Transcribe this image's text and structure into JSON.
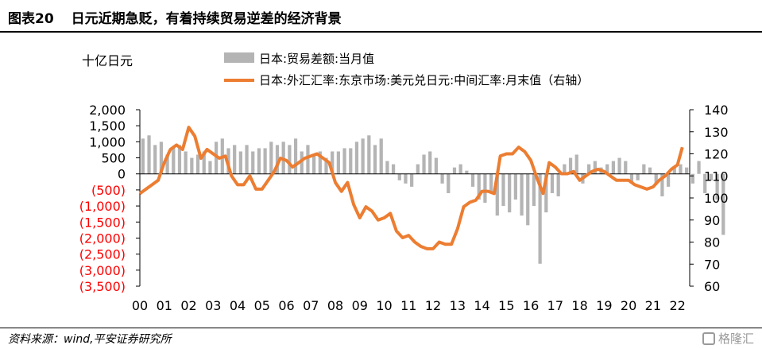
{
  "header": {
    "label": "图表20",
    "title": "日元近期急贬，有着持续贸易逆差的经济背景"
  },
  "footer": {
    "source": "资料来源：wind,平安证券研究所",
    "watermark": "格隆汇"
  },
  "colors": {
    "bars": "#b4b4b4",
    "line": "#ec7d31",
    "negative_tick": "#ff0000"
  },
  "chart_data": {
    "type": "bar+line",
    "y_left_unit": "十亿日元",
    "y_left_range": [
      -3500,
      2000
    ],
    "y_left_ticks": [
      "2,000",
      "1,500",
      "1,000",
      "500",
      "0",
      "(500)",
      "(1,000)",
      "(1,500)",
      "(2,000)",
      "(2,500)",
      "(3,000)",
      "(3,500)"
    ],
    "y_right_range": [
      60,
      140
    ],
    "y_right_ticks": [
      "140",
      "130",
      "120",
      "110",
      "100",
      "90",
      "80",
      "70",
      "60"
    ],
    "x_range": [
      2000,
      2022.5
    ],
    "x_ticks": [
      "00",
      "01",
      "02",
      "03",
      "04",
      "05",
      "06",
      "07",
      "08",
      "09",
      "10",
      "11",
      "12",
      "13",
      "14",
      "15",
      "16",
      "17",
      "18",
      "19",
      "20",
      "21",
      "22"
    ],
    "legend": {
      "position": "top",
      "entries": [
        "日本:贸易差额:当月值",
        "日本:外汇汇率:东京市场:美元兑日元:中间汇率:月末值（右轴）"
      ]
    },
    "series": [
      {
        "name": "日本:贸易差额:当月值",
        "type": "bar",
        "axis": "left",
        "step_years": 0.25,
        "x_start": 2000,
        "values": [
          1100,
          1200,
          900,
          1000,
          600,
          800,
          900,
          700,
          500,
          600,
          700,
          400,
          1000,
          1100,
          800,
          900,
          700,
          900,
          700,
          800,
          800,
          1000,
          900,
          1000,
          900,
          1100,
          700,
          900,
          600,
          700,
          500,
          700,
          700,
          800,
          800,
          1000,
          1100,
          1200,
          900,
          1100,
          400,
          300,
          -200,
          -300,
          -400,
          300,
          600,
          700,
          500,
          -300,
          -600,
          200,
          300,
          100,
          -400,
          -800,
          -900,
          -600,
          -1300,
          -1000,
          -1200,
          -800,
          -1300,
          -1600,
          -1000,
          -2800,
          -1200,
          -600,
          -700,
          300,
          500,
          600,
          -300,
          300,
          400,
          200,
          300,
          400,
          500,
          400,
          -300,
          -200,
          300,
          200,
          -300,
          -700,
          -400,
          200,
          300,
          200,
          -300,
          400,
          -600,
          -200,
          -800,
          -1900
        ]
      },
      {
        "name": "日本:外汇汇率:东京市场:美元兑日元:中间汇率:月末值（右轴）",
        "type": "line",
        "axis": "right",
        "x": [
          2000.0,
          2000.25,
          2000.5,
          2000.75,
          2001.0,
          2001.25,
          2001.5,
          2001.75,
          2002.0,
          2002.25,
          2002.5,
          2002.75,
          2003.0,
          2003.25,
          2003.5,
          2003.75,
          2004.0,
          2004.25,
          2004.5,
          2004.75,
          2005.0,
          2005.25,
          2005.5,
          2005.75,
          2006.0,
          2006.25,
          2006.5,
          2006.75,
          2007.0,
          2007.25,
          2007.5,
          2007.75,
          2008.0,
          2008.25,
          2008.5,
          2008.75,
          2009.0,
          2009.25,
          2009.5,
          2009.75,
          2010.0,
          2010.25,
          2010.5,
          2010.75,
          2011.0,
          2011.25,
          2011.5,
          2011.75,
          2012.0,
          2012.25,
          2012.5,
          2012.75,
          2013.0,
          2013.25,
          2013.5,
          2013.75,
          2014.0,
          2014.25,
          2014.5,
          2014.75,
          2015.0,
          2015.25,
          2015.5,
          2015.75,
          2016.0,
          2016.25,
          2016.5,
          2016.75,
          2017.0,
          2017.25,
          2017.5,
          2017.75,
          2018.0,
          2018.25,
          2018.5,
          2018.75,
          2019.0,
          2019.25,
          2019.5,
          2019.75,
          2020.0,
          2020.25,
          2020.5,
          2020.75,
          2021.0,
          2021.25,
          2021.5,
          2021.75,
          2022.0,
          2022.2
        ],
        "values": [
          102,
          104,
          106,
          108,
          116,
          122,
          124,
          122,
          132,
          128,
          118,
          122,
          120,
          118,
          119,
          110,
          106,
          106,
          110,
          104,
          104,
          108,
          112,
          118,
          117,
          114,
          116,
          118,
          119,
          120,
          118,
          116,
          107,
          103,
          107,
          97,
          91,
          96,
          94,
          90,
          91,
          93,
          85,
          82,
          83,
          80,
          78,
          77,
          77,
          80,
          79,
          79,
          86,
          96,
          98,
          99,
          103,
          103,
          102,
          119,
          120,
          120,
          123,
          121,
          117,
          109,
          102,
          116,
          114,
          111,
          111,
          112,
          108,
          110,
          112,
          113,
          112,
          110,
          108,
          108,
          108,
          106,
          105,
          104,
          105,
          108,
          110,
          113,
          115,
          123
        ]
      }
    ]
  }
}
